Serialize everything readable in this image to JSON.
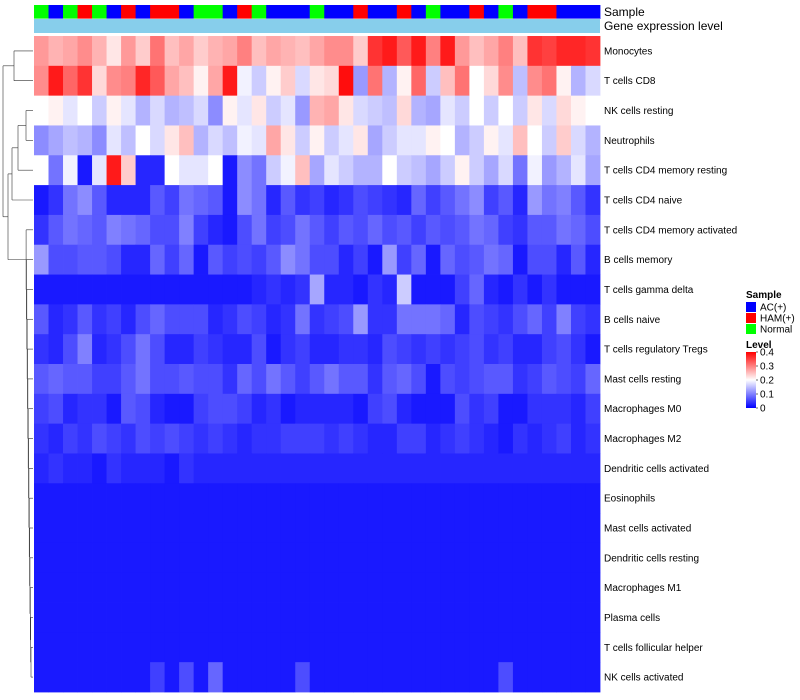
{
  "annotation_labels": {
    "sample": "Sample",
    "expression": "Gene expression level"
  },
  "colors": {
    "low": "#0000ff",
    "mid": "#ffffff",
    "high": "#ff0000",
    "expression_bar": "#87ceeb",
    "sample_groups": {
      "AC(+)": "#0000ff",
      "HAM(+)": "#ff0000",
      "Normal": "#00ff00"
    }
  },
  "legend": {
    "sample": {
      "title": "Sample",
      "entries": [
        {
          "label": "AC(+)",
          "color": "#0000ff"
        },
        {
          "label": "HAM(+)",
          "color": "#ff0000"
        },
        {
          "label": "Normal",
          "color": "#00ff00"
        }
      ]
    },
    "level": {
      "title": "Level",
      "ticks": [
        "0.4",
        "0.3",
        "0.2",
        "0.1",
        "0"
      ],
      "tick_values": [
        0.4,
        0.3,
        0.2,
        0.1,
        0
      ]
    }
  },
  "chart_data": {
    "type": "heatmap",
    "title": "",
    "value_range": [
      0,
      0.4
    ],
    "samples": [
      "Normal",
      "AC(+)",
      "Normal",
      "HAM(+)",
      "Normal",
      "AC(+)",
      "HAM(+)",
      "AC(+)",
      "HAM(+)",
      "HAM(+)",
      "AC(+)",
      "Normal",
      "Normal",
      "AC(+)",
      "HAM(+)",
      "Normal",
      "AC(+)",
      "AC(+)",
      "AC(+)",
      "Normal",
      "AC(+)",
      "AC(+)",
      "HAM(+)",
      "AC(+)",
      "AC(+)",
      "HAM(+)",
      "AC(+)",
      "Normal",
      "AC(+)",
      "AC(+)",
      "HAM(+)",
      "AC(+)",
      "Normal",
      "AC(+)",
      "HAM(+)",
      "HAM(+)",
      "AC(+)",
      "AC(+)",
      "AC(+)"
    ],
    "rows": [
      "Monocytes",
      "T cells CD8",
      "NK cells resting",
      "Neutrophils",
      "T cells CD4 memory resting",
      "T cells CD4 naive",
      "T cells CD4 memory activated",
      "B cells memory",
      "T cells gamma delta",
      "B cells naive",
      "T cells regulatory  Tregs",
      "Mast cells resting",
      "Macrophages M0",
      "Macrophages M2",
      "Dendritic cells activated",
      "Eosinophils",
      "Mast cells activated",
      "Dendritic cells resting",
      "Macrophages M1",
      "Plasma cells",
      "T cells follicular helper",
      "NK cells activated"
    ],
    "values": [
      [
        0.28,
        0.26,
        0.27,
        0.29,
        0.26,
        0.22,
        0.28,
        0.24,
        0.31,
        0.25,
        0.27,
        0.24,
        0.26,
        0.27,
        0.3,
        0.25,
        0.27,
        0.26,
        0.25,
        0.27,
        0.29,
        0.29,
        0.24,
        0.36,
        0.38,
        0.33,
        0.38,
        0.3,
        0.38,
        0.28,
        0.25,
        0.27,
        0.3,
        0.25,
        0.36,
        0.35,
        0.37,
        0.37,
        0.36
      ],
      [
        0.29,
        0.38,
        0.32,
        0.36,
        0.23,
        0.29,
        0.3,
        0.37,
        0.33,
        0.27,
        0.25,
        0.21,
        0.27,
        0.38,
        0.19,
        0.16,
        0.21,
        0.24,
        0.17,
        0.22,
        0.23,
        0.39,
        0.12,
        0.31,
        0.14,
        0.21,
        0.32,
        0.16,
        0.25,
        0.31,
        0.2,
        0.23,
        0.29,
        0.15,
        0.29,
        0.31,
        0.21,
        0.14,
        0.17
      ],
      [
        0.2,
        0.21,
        0.18,
        0.2,
        0.16,
        0.21,
        0.18,
        0.14,
        0.17,
        0.14,
        0.15,
        0.17,
        0.11,
        0.21,
        0.18,
        0.22,
        0.16,
        0.18,
        0.12,
        0.26,
        0.27,
        0.22,
        0.17,
        0.16,
        0.15,
        0.23,
        0.14,
        0.13,
        0.18,
        0.16,
        0.2,
        0.16,
        0.2,
        0.16,
        0.22,
        0.17,
        0.23,
        0.21,
        0.2
      ],
      [
        0.11,
        0.13,
        0.15,
        0.14,
        0.11,
        0.18,
        0.15,
        0.2,
        0.17,
        0.22,
        0.25,
        0.14,
        0.17,
        0.15,
        0.19,
        0.18,
        0.27,
        0.22,
        0.16,
        0.21,
        0.16,
        0.18,
        0.22,
        0.13,
        0.16,
        0.18,
        0.18,
        0.21,
        0.2,
        0.14,
        0.16,
        0.21,
        0.18,
        0.25,
        0.2,
        0.16,
        0.24,
        0.17,
        0.14
      ],
      [
        0.2,
        0.09,
        0.19,
        0.02,
        0.18,
        0.38,
        0.24,
        0.03,
        0.03,
        0.2,
        0.18,
        0.18,
        0.2,
        0.02,
        0.11,
        0.09,
        0.16,
        0.19,
        0.25,
        0.13,
        0.18,
        0.16,
        0.14,
        0.14,
        0.2,
        0.16,
        0.15,
        0.13,
        0.16,
        0.21,
        0.16,
        0.13,
        0.17,
        0.09,
        0.19,
        0.12,
        0.14,
        0.18,
        0.13
      ],
      [
        0.02,
        0.04,
        0.09,
        0.11,
        0.07,
        0.03,
        0.03,
        0.03,
        0.07,
        0.05,
        0.09,
        0.08,
        0.07,
        0.02,
        0.11,
        0.09,
        0.03,
        0.07,
        0.04,
        0.05,
        0.03,
        0.04,
        0.06,
        0.05,
        0.04,
        0.03,
        0.08,
        0.05,
        0.07,
        0.09,
        0.11,
        0.05,
        0.07,
        0.03,
        0.12,
        0.09,
        0.1,
        0.07,
        0.04
      ],
      [
        0.04,
        0.07,
        0.09,
        0.08,
        0.07,
        0.1,
        0.09,
        0.08,
        0.06,
        0.06,
        0.1,
        0.05,
        0.03,
        0.02,
        0.06,
        0.09,
        0.05,
        0.06,
        0.09,
        0.07,
        0.05,
        0.07,
        0.06,
        0.08,
        0.06,
        0.07,
        0.05,
        0.07,
        0.06,
        0.07,
        0.09,
        0.08,
        0.05,
        0.04,
        0.07,
        0.07,
        0.09,
        0.08,
        0.06
      ],
      [
        0.12,
        0.06,
        0.06,
        0.07,
        0.07,
        0.06,
        0.03,
        0.03,
        0.08,
        0.05,
        0.08,
        0.02,
        0.07,
        0.05,
        0.06,
        0.05,
        0.07,
        0.11,
        0.09,
        0.06,
        0.06,
        0.03,
        0.05,
        0.02,
        0.12,
        0.05,
        0.08,
        0.02,
        0.08,
        0.06,
        0.07,
        0.09,
        0.08,
        0.02,
        0.06,
        0.06,
        0.03,
        0.07,
        0.03
      ],
      [
        0.02,
        0.02,
        0.02,
        0.02,
        0.02,
        0.02,
        0.02,
        0.02,
        0.02,
        0.02,
        0.02,
        0.02,
        0.02,
        0.02,
        0.02,
        0.03,
        0.04,
        0.03,
        0.04,
        0.13,
        0.03,
        0.03,
        0.02,
        0.04,
        0.03,
        0.16,
        0.02,
        0.02,
        0.02,
        0.05,
        0.08,
        0.03,
        0.02,
        0.04,
        0.02,
        0.04,
        0.02,
        0.02,
        0.02
      ],
      [
        0.07,
        0.03,
        0.04,
        0.07,
        0.04,
        0.05,
        0.03,
        0.06,
        0.08,
        0.06,
        0.06,
        0.06,
        0.03,
        0.04,
        0.06,
        0.05,
        0.03,
        0.04,
        0.09,
        0.04,
        0.05,
        0.06,
        0.12,
        0.04,
        0.04,
        0.09,
        0.09,
        0.09,
        0.08,
        0.03,
        0.06,
        0.05,
        0.04,
        0.06,
        0.08,
        0.05,
        0.1,
        0.05,
        0.04
      ],
      [
        0.04,
        0.03,
        0.06,
        0.1,
        0.03,
        0.04,
        0.06,
        0.09,
        0.06,
        0.03,
        0.03,
        0.05,
        0.04,
        0.03,
        0.03,
        0.06,
        0.02,
        0.04,
        0.05,
        0.03,
        0.03,
        0.04,
        0.04,
        0.03,
        0.06,
        0.05,
        0.04,
        0.05,
        0.04,
        0.05,
        0.06,
        0.04,
        0.05,
        0.03,
        0.03,
        0.05,
        0.06,
        0.04,
        0.02
      ],
      [
        0.07,
        0.08,
        0.07,
        0.07,
        0.05,
        0.05,
        0.07,
        0.09,
        0.06,
        0.06,
        0.07,
        0.06,
        0.06,
        0.04,
        0.08,
        0.06,
        0.09,
        0.07,
        0.05,
        0.07,
        0.09,
        0.07,
        0.07,
        0.04,
        0.07,
        0.08,
        0.06,
        0.02,
        0.06,
        0.05,
        0.06,
        0.07,
        0.07,
        0.04,
        0.05,
        0.07,
        0.06,
        0.05,
        0.08
      ],
      [
        0.05,
        0.06,
        0.03,
        0.04,
        0.04,
        0.02,
        0.07,
        0.06,
        0.03,
        0.02,
        0.02,
        0.05,
        0.06,
        0.06,
        0.05,
        0.03,
        0.04,
        0.02,
        0.03,
        0.03,
        0.03,
        0.03,
        0.02,
        0.05,
        0.06,
        0.03,
        0.02,
        0.02,
        0.02,
        0.06,
        0.04,
        0.05,
        0.02,
        0.02,
        0.04,
        0.04,
        0.04,
        0.03,
        0.05
      ],
      [
        0.04,
        0.03,
        0.05,
        0.04,
        0.06,
        0.05,
        0.04,
        0.06,
        0.05,
        0.06,
        0.05,
        0.04,
        0.05,
        0.04,
        0.03,
        0.04,
        0.04,
        0.05,
        0.05,
        0.05,
        0.04,
        0.05,
        0.04,
        0.03,
        0.03,
        0.05,
        0.05,
        0.03,
        0.04,
        0.05,
        0.04,
        0.03,
        0.02,
        0.04,
        0.03,
        0.04,
        0.05,
        0.03,
        0.04
      ],
      [
        0.03,
        0.04,
        0.03,
        0.03,
        0.02,
        0.04,
        0.03,
        0.03,
        0.03,
        0.02,
        0.04,
        0.03,
        0.03,
        0.03,
        0.03,
        0.03,
        0.03,
        0.03,
        0.03,
        0.03,
        0.03,
        0.03,
        0.03,
        0.03,
        0.03,
        0.03,
        0.03,
        0.03,
        0.03,
        0.03,
        0.03,
        0.03,
        0.03,
        0.03,
        0.03,
        0.03,
        0.03,
        0.03,
        0.03
      ],
      [
        0.02,
        0.02,
        0.02,
        0.02,
        0.02,
        0.02,
        0.02,
        0.02,
        0.02,
        0.02,
        0.02,
        0.02,
        0.02,
        0.02,
        0.02,
        0.02,
        0.02,
        0.02,
        0.02,
        0.02,
        0.02,
        0.02,
        0.02,
        0.02,
        0.02,
        0.02,
        0.02,
        0.02,
        0.02,
        0.02,
        0.02,
        0.02,
        0.02,
        0.02,
        0.02,
        0.02,
        0.02,
        0.02,
        0.02
      ],
      [
        0.02,
        0.02,
        0.02,
        0.02,
        0.02,
        0.02,
        0.02,
        0.02,
        0.02,
        0.02,
        0.02,
        0.02,
        0.02,
        0.02,
        0.02,
        0.02,
        0.02,
        0.02,
        0.02,
        0.02,
        0.02,
        0.02,
        0.02,
        0.02,
        0.02,
        0.02,
        0.02,
        0.02,
        0.02,
        0.02,
        0.02,
        0.02,
        0.02,
        0.02,
        0.02,
        0.02,
        0.02,
        0.02,
        0.02
      ],
      [
        0.02,
        0.02,
        0.02,
        0.02,
        0.02,
        0.02,
        0.02,
        0.02,
        0.02,
        0.02,
        0.02,
        0.02,
        0.02,
        0.02,
        0.02,
        0.02,
        0.02,
        0.02,
        0.02,
        0.02,
        0.02,
        0.02,
        0.02,
        0.02,
        0.02,
        0.02,
        0.02,
        0.02,
        0.02,
        0.02,
        0.02,
        0.02,
        0.02,
        0.02,
        0.02,
        0.02,
        0.02,
        0.02,
        0.02
      ],
      [
        0.02,
        0.02,
        0.02,
        0.02,
        0.02,
        0.02,
        0.02,
        0.02,
        0.02,
        0.02,
        0.02,
        0.02,
        0.02,
        0.02,
        0.02,
        0.02,
        0.02,
        0.02,
        0.02,
        0.02,
        0.02,
        0.02,
        0.02,
        0.02,
        0.02,
        0.02,
        0.02,
        0.02,
        0.02,
        0.02,
        0.02,
        0.02,
        0.02,
        0.02,
        0.02,
        0.02,
        0.02,
        0.02,
        0.02
      ],
      [
        0.02,
        0.02,
        0.02,
        0.02,
        0.02,
        0.02,
        0.02,
        0.02,
        0.02,
        0.02,
        0.02,
        0.02,
        0.02,
        0.02,
        0.02,
        0.02,
        0.02,
        0.02,
        0.02,
        0.02,
        0.02,
        0.02,
        0.02,
        0.02,
        0.02,
        0.02,
        0.02,
        0.02,
        0.02,
        0.02,
        0.02,
        0.02,
        0.02,
        0.02,
        0.02,
        0.02,
        0.02,
        0.02,
        0.02
      ],
      [
        0.02,
        0.02,
        0.02,
        0.02,
        0.02,
        0.02,
        0.02,
        0.02,
        0.02,
        0.02,
        0.02,
        0.02,
        0.02,
        0.02,
        0.02,
        0.02,
        0.02,
        0.02,
        0.02,
        0.02,
        0.02,
        0.02,
        0.02,
        0.02,
        0.02,
        0.02,
        0.02,
        0.02,
        0.02,
        0.02,
        0.02,
        0.02,
        0.02,
        0.02,
        0.02,
        0.02,
        0.02,
        0.02,
        0.02
      ],
      [
        0.02,
        0.02,
        0.02,
        0.02,
        0.02,
        0.02,
        0.02,
        0.02,
        0.05,
        0.02,
        0.06,
        0.02,
        0.08,
        0.02,
        0.02,
        0.02,
        0.02,
        0.02,
        0.06,
        0.02,
        0.02,
        0.02,
        0.02,
        0.02,
        0.02,
        0.02,
        0.02,
        0.02,
        0.02,
        0.02,
        0.02,
        0.02,
        0.06,
        0.02,
        0.02,
        0.02,
        0.02,
        0.02,
        0.02
      ]
    ]
  }
}
